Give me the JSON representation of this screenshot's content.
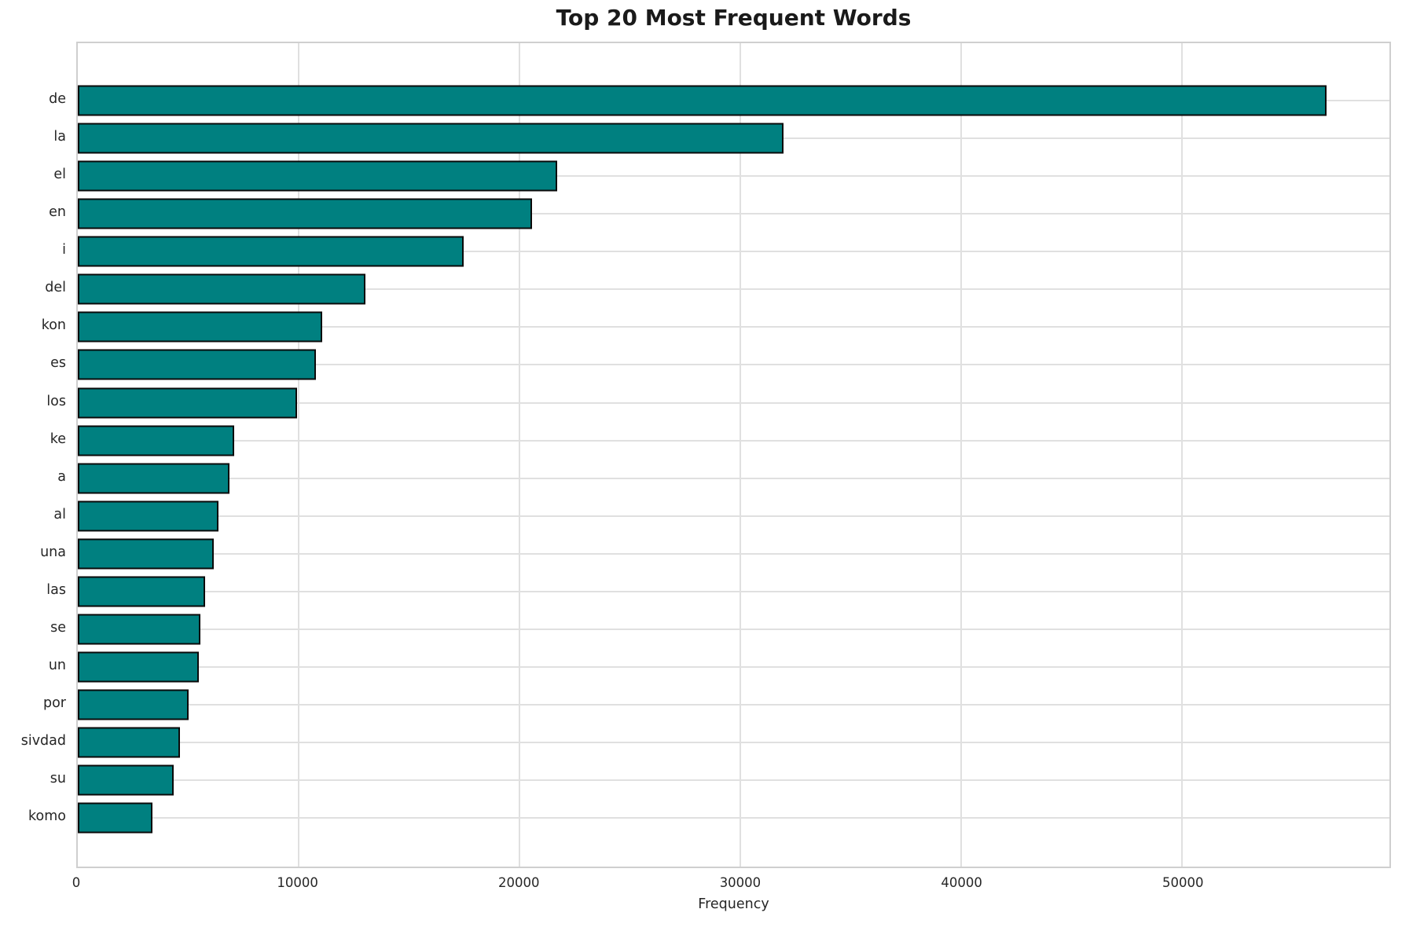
{
  "chart_data": {
    "type": "bar",
    "orientation": "horizontal",
    "title": "Top 20 Most Frequent Words",
    "xlabel": "Frequency",
    "ylabel": "",
    "categories": [
      "de",
      "la",
      "el",
      "en",
      "i",
      "del",
      "kon",
      "es",
      "los",
      "ke",
      "a",
      "al",
      "una",
      "las",
      "se",
      "un",
      "por",
      "sivdad",
      "su",
      "komo"
    ],
    "values": [
      56570,
      31950,
      21710,
      20570,
      17490,
      13020,
      11070,
      10800,
      9940,
      7070,
      6860,
      6380,
      6160,
      5780,
      5550,
      5480,
      5020,
      4630,
      4350,
      3380
    ],
    "xlim": [
      0,
      59400
    ],
    "xticks": [
      0,
      10000,
      20000,
      30000,
      40000,
      50000
    ],
    "xtick_labels": [
      "0",
      "10000",
      "20000",
      "30000",
      "40000",
      "50000"
    ],
    "grid": true,
    "legend_position": "none",
    "colors": {
      "bar_fill": "#008080",
      "bar_edge": "#0a0a0a",
      "gridline": "#e0e0e0",
      "spine": "#cfcfcf",
      "tick_text": "#262626",
      "title_text": "#1a1a1a"
    }
  }
}
